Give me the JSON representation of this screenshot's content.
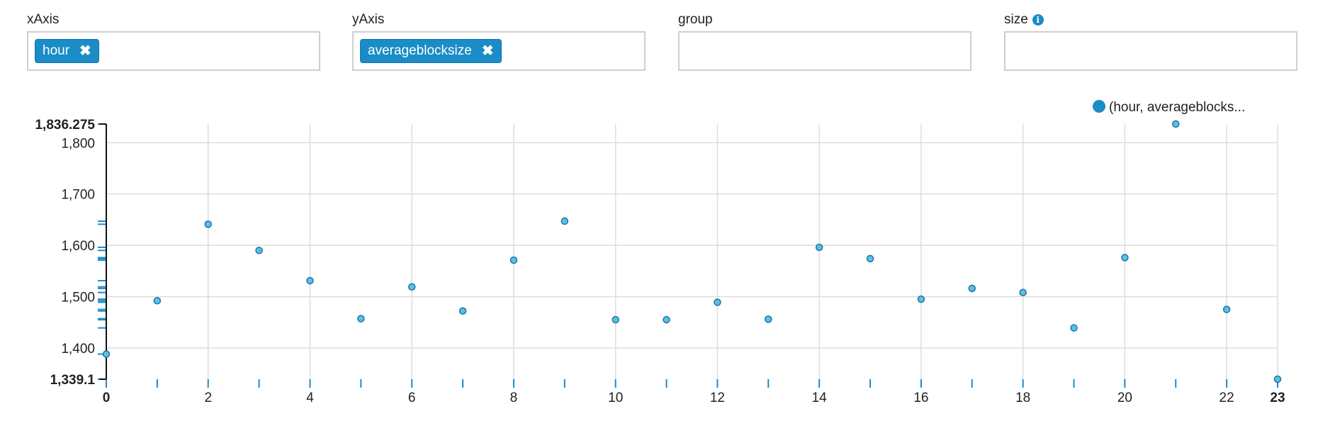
{
  "controls": {
    "x_axis": {
      "label": "xAxis",
      "tag": "hour",
      "remove_glyph": "✖"
    },
    "y_axis": {
      "label": "yAxis",
      "tag": "averageblocksize",
      "remove_glyph": "✖"
    },
    "group": {
      "label": "group"
    },
    "size": {
      "label": "size",
      "info_icon": "info-icon",
      "info_glyph": "i"
    }
  },
  "colors": {
    "accent": "#1a8cc7",
    "point_fill": "#5fbfe3",
    "point_stroke": "#1577aa",
    "grid": "#dddddd",
    "axis": "#111111"
  },
  "chart_data": {
    "type": "scatter",
    "legend": {
      "label": "(hour, averageblocks...",
      "position": "top-right"
    },
    "xlim": [
      0,
      23
    ],
    "ylim": [
      1339.1,
      1836.275
    ],
    "x_ticks": [
      0,
      2,
      4,
      6,
      8,
      10,
      12,
      14,
      16,
      18,
      20,
      22,
      23
    ],
    "x_tick_labels": [
      "0",
      "2",
      "4",
      "6",
      "8",
      "10",
      "12",
      "14",
      "16",
      "18",
      "20",
      "22",
      "23"
    ],
    "x_bold_ticks": [
      0,
      23
    ],
    "y_ticks": [
      1400,
      1500,
      1600,
      1700,
      1800
    ],
    "y_tick_labels": [
      "1,400",
      "1,500",
      "1,600",
      "1,700",
      "1,800"
    ],
    "y_min_label": "1,339.1",
    "y_max_label": "1,836.275",
    "grid": true,
    "rug": true,
    "series": [
      {
        "name": "(hour, averageblocksize)",
        "x": [
          0,
          1,
          2,
          3,
          4,
          5,
          6,
          7,
          8,
          9,
          10,
          11,
          12,
          13,
          14,
          15,
          16,
          17,
          18,
          19,
          20,
          21,
          22,
          23
        ],
        "y": [
          1388,
          1492,
          1641,
          1590,
          1531,
          1457,
          1519,
          1472,
          1571,
          1647,
          1455,
          1455,
          1489,
          1456,
          1596,
          1574,
          1495,
          1516,
          1508,
          1439,
          1576,
          1836.275,
          1475,
          1339.1
        ]
      }
    ]
  }
}
